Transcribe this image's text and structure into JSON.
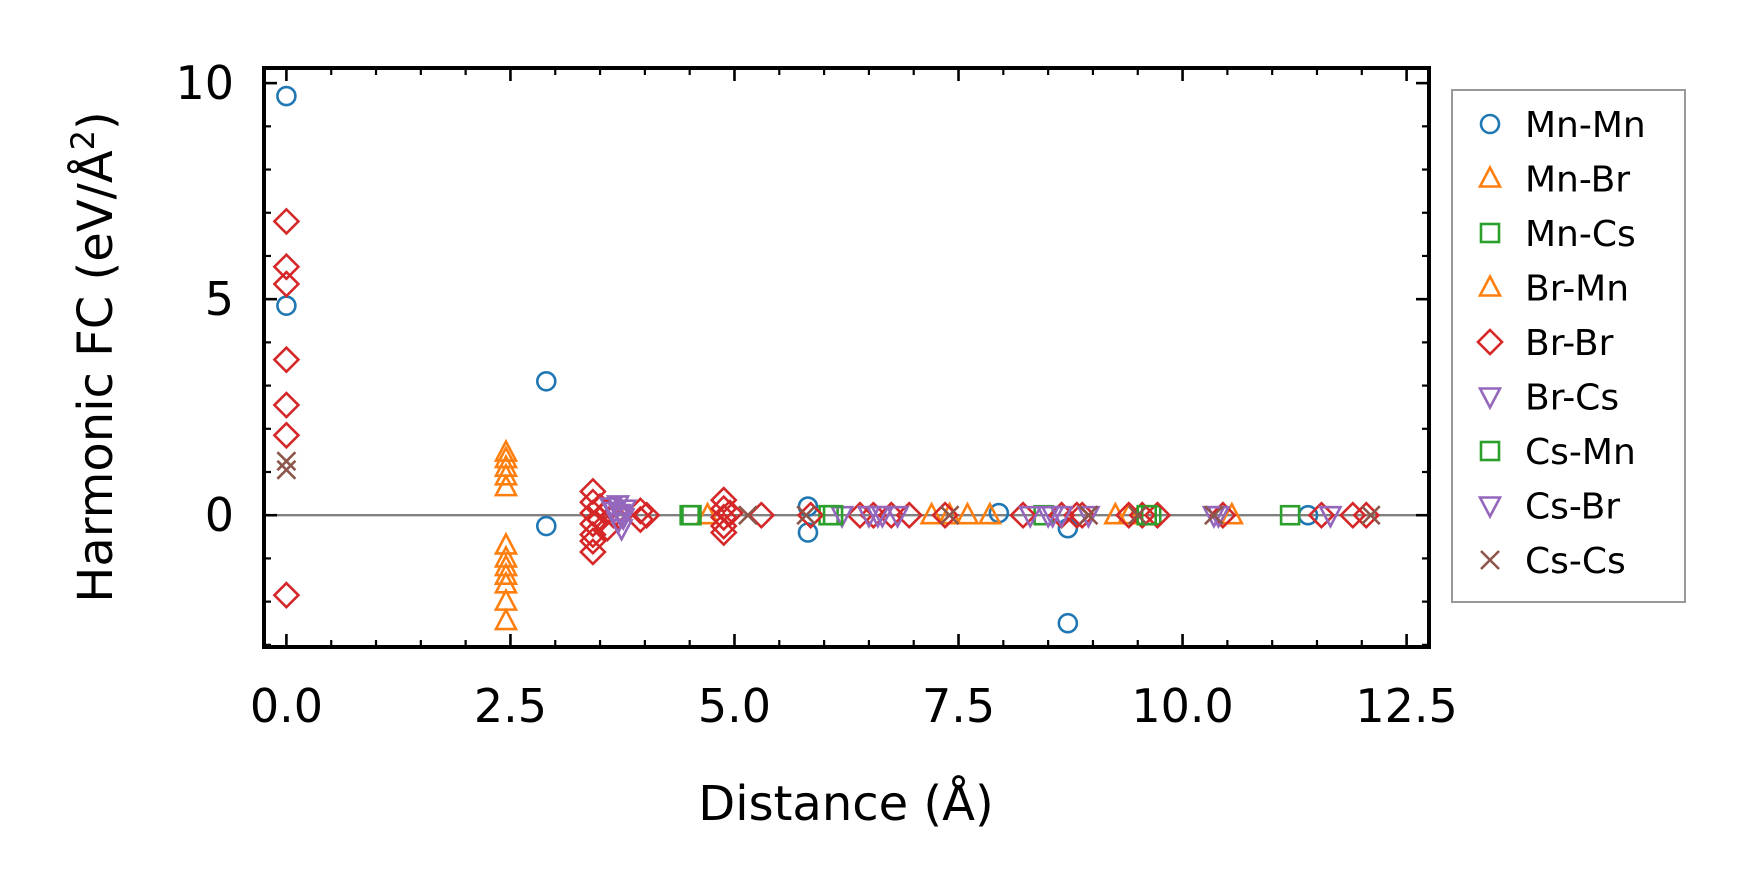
{
  "chart_data": {
    "type": "scatter",
    "xlabel": "Distance (Å)",
    "ylabel_main": "Harmonic FC (eV/Å",
    "ylabel_sup": "2",
    "ylabel_end": ")",
    "xlim": [
      -0.25,
      12.75
    ],
    "ylim": [
      -3.05,
      10.35
    ],
    "xticks": [
      0.0,
      2.5,
      5.0,
      7.5,
      10.0,
      12.5
    ],
    "xtick_labels": [
      "0.0",
      "2.5",
      "5.0",
      "7.5",
      "10.0",
      "12.5"
    ],
    "yticks": [
      0,
      5,
      10
    ],
    "ytick_labels": [
      "0",
      "5",
      "10"
    ],
    "zero_line": true,
    "legend_position": "outside-right",
    "series": [
      {
        "name": "Mn-Mn",
        "marker": "circle",
        "color": "#1f77b4",
        "filled": false,
        "points": [
          [
            0.0,
            9.7
          ],
          [
            0.0,
            4.85
          ],
          [
            2.9,
            3.1
          ],
          [
            2.9,
            -0.25
          ],
          [
            5.82,
            0.2
          ],
          [
            5.82,
            -0.4
          ],
          [
            7.95,
            0.05
          ],
          [
            8.72,
            -0.3
          ],
          [
            8.72,
            -2.5
          ],
          [
            11.4,
            0.0
          ]
        ]
      },
      {
        "name": "Mn-Br",
        "marker": "triangle-up",
        "color": "#ff7f0e",
        "filled": false,
        "points": [
          [
            2.45,
            1.45
          ],
          [
            2.45,
            1.1
          ],
          [
            2.45,
            0.65
          ],
          [
            2.45,
            -0.7
          ],
          [
            2.45,
            -1.2
          ],
          [
            2.45,
            -1.4
          ],
          [
            2.45,
            -2.0
          ],
          [
            2.45,
            -2.45
          ],
          [
            4.7,
            0.0
          ],
          [
            7.2,
            0.0
          ],
          [
            7.6,
            0.0
          ],
          [
            7.85,
            0.0
          ],
          [
            9.25,
            0.0
          ],
          [
            10.55,
            0.0
          ]
        ]
      },
      {
        "name": "Mn-Cs",
        "marker": "square",
        "color": "#2ca02c",
        "filled": false,
        "points": [
          [
            4.5,
            0.0
          ],
          [
            6.05,
            0.0
          ],
          [
            8.45,
            0.0
          ],
          [
            9.65,
            0.0
          ],
          [
            11.2,
            0.0
          ]
        ]
      },
      {
        "name": "Br-Mn",
        "marker": "triangle-up",
        "color": "#ff7f0e",
        "filled": false,
        "points": [
          [
            2.45,
            1.3
          ],
          [
            2.45,
            0.9
          ],
          [
            2.45,
            -1.0
          ],
          [
            2.45,
            -1.6
          ],
          [
            7.4,
            0.0
          ],
          [
            9.4,
            0.0
          ]
        ]
      },
      {
        "name": "Br-Br",
        "marker": "diamond",
        "color": "#d62728",
        "filled": false,
        "points": [
          [
            0.0,
            6.8
          ],
          [
            0.0,
            5.75
          ],
          [
            0.0,
            5.35
          ],
          [
            0.0,
            3.6
          ],
          [
            0.0,
            2.55
          ],
          [
            0.0,
            1.85
          ],
          [
            0.0,
            -1.85
          ],
          [
            3.42,
            0.55
          ],
          [
            3.42,
            0.3
          ],
          [
            3.42,
            0.05
          ],
          [
            3.42,
            -0.2
          ],
          [
            3.42,
            -0.45
          ],
          [
            3.42,
            -0.6
          ],
          [
            3.42,
            -0.85
          ],
          [
            3.5,
            0.2
          ],
          [
            3.5,
            -0.1
          ],
          [
            3.58,
            0.1
          ],
          [
            3.58,
            -0.3
          ],
          [
            3.65,
            0.0
          ],
          [
            3.95,
            0.1
          ],
          [
            3.95,
            -0.1
          ],
          [
            4.02,
            0.0
          ],
          [
            4.88,
            0.35
          ],
          [
            4.88,
            0.15
          ],
          [
            4.88,
            -0.05
          ],
          [
            4.88,
            -0.25
          ],
          [
            4.88,
            -0.4
          ],
          [
            4.95,
            0.05
          ],
          [
            5.3,
            0.0
          ],
          [
            5.85,
            0.0
          ],
          [
            6.4,
            0.0
          ],
          [
            6.55,
            0.0
          ],
          [
            6.75,
            0.0
          ],
          [
            6.95,
            0.0
          ],
          [
            7.35,
            0.0
          ],
          [
            8.22,
            0.0
          ],
          [
            8.65,
            0.0
          ],
          [
            8.82,
            0.0
          ],
          [
            8.88,
            0.0
          ],
          [
            9.4,
            0.0
          ],
          [
            9.55,
            0.0
          ],
          [
            9.72,
            0.0
          ],
          [
            10.45,
            0.0
          ],
          [
            11.55,
            0.0
          ],
          [
            11.9,
            0.0
          ],
          [
            12.05,
            0.0
          ]
        ]
      },
      {
        "name": "Br-Cs",
        "marker": "triangle-down",
        "color": "#9467bd",
        "filled": false,
        "points": [
          [
            3.62,
            0.2
          ],
          [
            3.66,
            0.1
          ],
          [
            3.7,
            0.25
          ],
          [
            3.74,
            0.0
          ],
          [
            3.78,
            0.15
          ],
          [
            3.7,
            -0.15
          ],
          [
            3.74,
            -0.3
          ],
          [
            6.2,
            0.0
          ],
          [
            6.5,
            0.0
          ],
          [
            6.65,
            0.0
          ],
          [
            6.82,
            0.0
          ],
          [
            8.3,
            0.0
          ],
          [
            8.5,
            0.0
          ],
          [
            8.65,
            0.0
          ],
          [
            8.95,
            0.0
          ],
          [
            10.35,
            0.0
          ],
          [
            11.65,
            0.0
          ]
        ]
      },
      {
        "name": "Cs-Mn",
        "marker": "square",
        "color": "#2ca02c",
        "filled": false,
        "points": [
          [
            4.52,
            0.0
          ],
          [
            6.1,
            0.0
          ],
          [
            9.6,
            0.0
          ]
        ]
      },
      {
        "name": "Cs-Br",
        "marker": "triangle-down",
        "color": "#9467bd",
        "filled": false,
        "points": [
          [
            3.72,
            0.05
          ],
          [
            3.76,
            -0.05
          ],
          [
            6.6,
            0.0
          ],
          [
            8.55,
            0.0
          ],
          [
            10.4,
            0.0
          ]
        ]
      },
      {
        "name": "Cs-Cs",
        "marker": "x",
        "color": "#8c564b",
        "filled": false,
        "points": [
          [
            0.0,
            1.25
          ],
          [
            0.0,
            1.05
          ],
          [
            5.15,
            0.0
          ],
          [
            5.8,
            0.0
          ],
          [
            7.4,
            0.0
          ],
          [
            8.95,
            0.0
          ],
          [
            9.5,
            0.0
          ],
          [
            10.35,
            0.0
          ],
          [
            12.1,
            0.0
          ]
        ]
      }
    ]
  }
}
